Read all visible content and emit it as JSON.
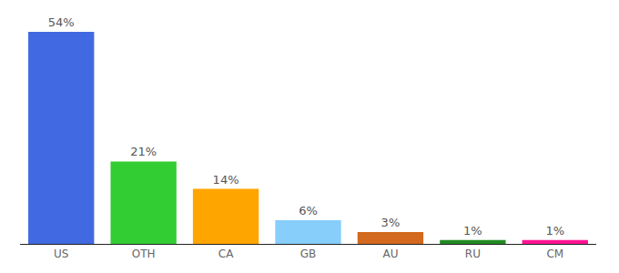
{
  "chart_data": {
    "type": "bar",
    "categories": [
      "US",
      "OTH",
      "CA",
      "GB",
      "AU",
      "RU",
      "CM"
    ],
    "values": [
      54,
      21,
      14,
      6,
      3,
      1,
      1
    ],
    "value_labels": [
      "54%",
      "21%",
      "14%",
      "6%",
      "3%",
      "1%",
      "1%"
    ],
    "colors": [
      "#4169e1",
      "#32cd32",
      "#ffa500",
      "#87cefa",
      "#d2691e",
      "#228b22",
      "#ff1493"
    ],
    "ylim": [
      0,
      54
    ],
    "data_labels": true,
    "grid": false,
    "tick_labels": "x"
  }
}
